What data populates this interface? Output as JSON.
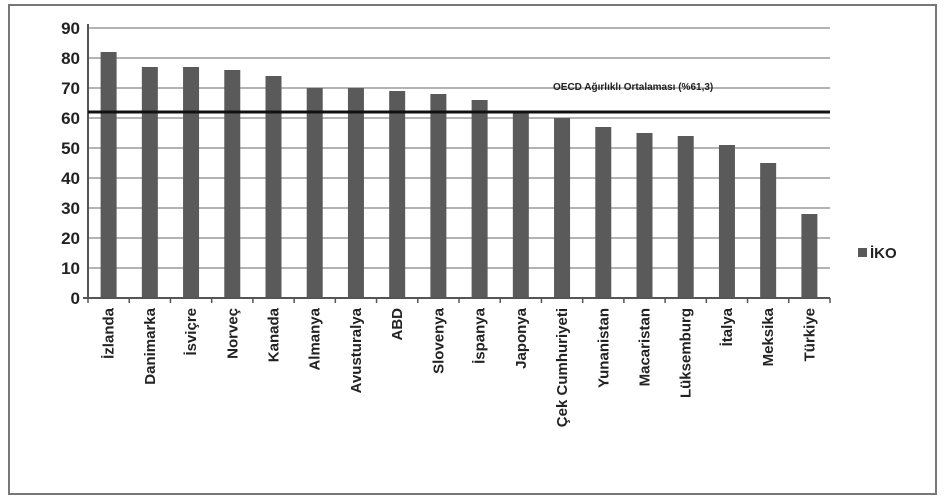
{
  "chart_data": {
    "type": "bar",
    "categories": [
      "İzlanda",
      "Danimarka",
      "İsviçre",
      "Norveç",
      "Kanada",
      "Almanya",
      "Avusturalya",
      "ABD",
      "Slovenya",
      "İspanya",
      "Japonya",
      "Çek Cumhuriyeti",
      "Yunanistan",
      "Macaristan",
      "Lüksemburg",
      "İtalya",
      "Meksika",
      "Türkiye"
    ],
    "series": [
      {
        "name": "İKO",
        "values": [
          82,
          77,
          77,
          76,
          74,
          70,
          70,
          69,
          68,
          66,
          62,
          60,
          57,
          55,
          54,
          51,
          45,
          28
        ],
        "color": "#5a5a5a"
      }
    ],
    "ylim": [
      0,
      90
    ],
    "yticks": [
      0,
      10,
      20,
      30,
      40,
      50,
      60,
      70,
      80,
      90
    ],
    "grid": true,
    "legend_position": "right",
    "reference_line": {
      "value": 62,
      "label": "OECD Ağırlıklı Ortalaması (%61,3)",
      "color": "#111111"
    },
    "title": "",
    "xlabel": "",
    "ylabel": ""
  }
}
